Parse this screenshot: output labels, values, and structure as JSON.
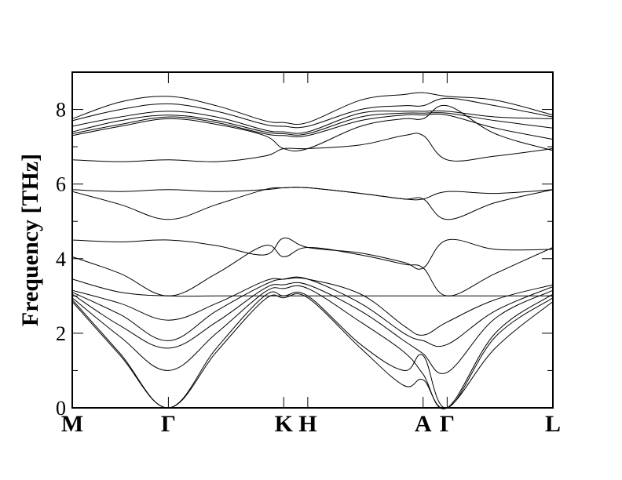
{
  "chart_data": {
    "type": "line",
    "title": "",
    "xlabel": "",
    "ylabel": "Frequency [THz]",
    "ylim": [
      0,
      9
    ],
    "yticks": [
      0,
      2,
      4,
      6,
      8
    ],
    "grid": false,
    "legend": "none",
    "line_color": "#000000",
    "high_symmetry_points": [
      {
        "label": "M",
        "x": 0.0
      },
      {
        "label": "Γ",
        "x": 1.0
      },
      {
        "label": "K",
        "x": 2.2
      },
      {
        "label": "H",
        "x": 2.45
      },
      {
        "label": "A",
        "x": 3.65
      },
      {
        "label": "Γ",
        "x": 3.9
      },
      {
        "label": "L",
        "x": 5.0
      }
    ],
    "xlim": [
      0,
      5.0
    ],
    "series": [
      {
        "values": [
          [
            0,
            2.85
          ],
          [
            0.5,
            1.4
          ],
          [
            1.0,
            0.0
          ],
          [
            1.5,
            1.5
          ],
          [
            2.0,
            2.9
          ],
          [
            2.2,
            2.95
          ],
          [
            2.45,
            2.95
          ],
          [
            3.0,
            1.6
          ],
          [
            3.45,
            0.6
          ],
          [
            3.65,
            0.75
          ],
          [
            3.9,
            0.0
          ],
          [
            4.4,
            1.6
          ],
          [
            5.0,
            2.85
          ]
        ]
      },
      {
        "values": [
          [
            0,
            2.9
          ],
          [
            0.5,
            1.45
          ],
          [
            1.0,
            0.0
          ],
          [
            1.5,
            1.6
          ],
          [
            2.0,
            3.0
          ],
          [
            2.2,
            3.0
          ],
          [
            2.45,
            3.0
          ],
          [
            3.0,
            1.7
          ],
          [
            3.45,
            1.0
          ],
          [
            3.65,
            1.4
          ],
          [
            3.9,
            0.0
          ],
          [
            4.4,
            1.9
          ],
          [
            5.0,
            2.95
          ]
        ]
      },
      {
        "values": [
          [
            0,
            2.95
          ],
          [
            0.5,
            1.9
          ],
          [
            1.0,
            1.0
          ],
          [
            1.5,
            2.0
          ],
          [
            2.0,
            3.1
          ],
          [
            2.2,
            3.2
          ],
          [
            2.45,
            3.2
          ],
          [
            3.0,
            2.3
          ],
          [
            3.45,
            1.5
          ],
          [
            3.65,
            0.9
          ],
          [
            3.9,
            0.0
          ],
          [
            4.4,
            2.0
          ],
          [
            5.0,
            3.05
          ]
        ]
      },
      {
        "values": [
          [
            0,
            3.05
          ],
          [
            0.5,
            2.2
          ],
          [
            1.0,
            1.6
          ],
          [
            1.5,
            2.3
          ],
          [
            2.0,
            3.2
          ],
          [
            2.2,
            3.3
          ],
          [
            2.45,
            3.3
          ],
          [
            3.0,
            2.6
          ],
          [
            3.45,
            1.8
          ],
          [
            3.65,
            1.45
          ],
          [
            3.9,
            0.95
          ],
          [
            4.4,
            2.4
          ],
          [
            5.0,
            3.15
          ]
        ]
      },
      {
        "values": [
          [
            0,
            3.1
          ],
          [
            0.5,
            2.5
          ],
          [
            1.0,
            1.8
          ],
          [
            1.5,
            2.6
          ],
          [
            2.0,
            3.3
          ],
          [
            2.2,
            3.45
          ],
          [
            2.45,
            3.45
          ],
          [
            3.0,
            2.8
          ],
          [
            3.45,
            2.0
          ],
          [
            3.65,
            1.8
          ],
          [
            3.9,
            1.7
          ],
          [
            4.4,
            2.6
          ],
          [
            5.0,
            3.25
          ]
        ]
      },
      {
        "values": [
          [
            0,
            3.15
          ],
          [
            0.5,
            2.8
          ],
          [
            1.0,
            2.35
          ],
          [
            1.5,
            2.8
          ],
          [
            2.0,
            3.4
          ],
          [
            2.2,
            3.45
          ],
          [
            2.45,
            3.45
          ],
          [
            3.0,
            3.05
          ],
          [
            3.45,
            2.2
          ],
          [
            3.65,
            1.95
          ],
          [
            3.9,
            2.3
          ],
          [
            4.4,
            2.9
          ],
          [
            5.0,
            3.3
          ]
        ]
      },
      {
        "values": [
          [
            0,
            3.45
          ],
          [
            0.5,
            3.1
          ],
          [
            1.0,
            3.0
          ],
          [
            1.5,
            3.0
          ],
          [
            2.0,
            3.0
          ],
          [
            2.2,
            3.0
          ],
          [
            2.45,
            3.0
          ],
          [
            3.0,
            3.0
          ],
          [
            3.45,
            3.0
          ],
          [
            3.65,
            3.0
          ],
          [
            3.9,
            3.0
          ],
          [
            4.4,
            3.0
          ],
          [
            5.0,
            3.0
          ]
        ]
      },
      {
        "values": [
          [
            0,
            4.05
          ],
          [
            0.5,
            3.6
          ],
          [
            1.0,
            3.0
          ],
          [
            1.5,
            3.6
          ],
          [
            2.0,
            4.35
          ],
          [
            2.2,
            4.05
          ],
          [
            2.45,
            4.3
          ],
          [
            3.0,
            4.1
          ],
          [
            3.45,
            3.85
          ],
          [
            3.65,
            3.75
          ],
          [
            3.9,
            3.0
          ],
          [
            4.4,
            3.6
          ],
          [
            5.0,
            4.3
          ]
        ]
      },
      {
        "values": [
          [
            0,
            4.5
          ],
          [
            0.5,
            4.45
          ],
          [
            1.0,
            4.5
          ],
          [
            1.5,
            4.35
          ],
          [
            2.0,
            4.1
          ],
          [
            2.2,
            4.55
          ],
          [
            2.45,
            4.3
          ],
          [
            3.0,
            4.15
          ],
          [
            3.45,
            3.9
          ],
          [
            3.65,
            3.75
          ],
          [
            3.9,
            4.5
          ],
          [
            4.4,
            4.25
          ],
          [
            5.0,
            4.25
          ]
        ]
      },
      {
        "values": [
          [
            0,
            5.8
          ],
          [
            0.5,
            5.45
          ],
          [
            1.0,
            5.05
          ],
          [
            1.5,
            5.45
          ],
          [
            2.0,
            5.85
          ],
          [
            2.2,
            5.9
          ],
          [
            2.45,
            5.9
          ],
          [
            3.0,
            5.75
          ],
          [
            3.45,
            5.6
          ],
          [
            3.65,
            5.6
          ],
          [
            3.9,
            5.05
          ],
          [
            4.4,
            5.5
          ],
          [
            5.0,
            5.85
          ]
        ]
      },
      {
        "values": [
          [
            0,
            5.85
          ],
          [
            0.5,
            5.8
          ],
          [
            1.0,
            5.85
          ],
          [
            1.5,
            5.8
          ],
          [
            2.0,
            5.85
          ],
          [
            2.2,
            5.9
          ],
          [
            2.45,
            5.9
          ],
          [
            3.0,
            5.75
          ],
          [
            3.45,
            5.6
          ],
          [
            3.65,
            5.6
          ],
          [
            3.9,
            5.8
          ],
          [
            4.4,
            5.75
          ],
          [
            5.0,
            5.85
          ]
        ]
      },
      {
        "values": [
          [
            0,
            6.65
          ],
          [
            0.5,
            6.6
          ],
          [
            1.0,
            6.65
          ],
          [
            1.5,
            6.6
          ],
          [
            2.0,
            6.75
          ],
          [
            2.2,
            6.95
          ],
          [
            2.45,
            6.95
          ],
          [
            3.0,
            7.05
          ],
          [
            3.45,
            7.3
          ],
          [
            3.65,
            7.3
          ],
          [
            3.9,
            6.65
          ],
          [
            4.4,
            6.75
          ],
          [
            5.0,
            6.95
          ]
        ]
      },
      {
        "values": [
          [
            0,
            7.3
          ],
          [
            0.5,
            7.55
          ],
          [
            1.0,
            7.75
          ],
          [
            1.5,
            7.6
          ],
          [
            2.0,
            7.3
          ],
          [
            2.2,
            6.95
          ],
          [
            2.45,
            6.95
          ],
          [
            3.0,
            7.55
          ],
          [
            3.45,
            7.75
          ],
          [
            3.65,
            7.75
          ],
          [
            3.9,
            8.1
          ],
          [
            4.4,
            7.35
          ],
          [
            5.0,
            6.9
          ]
        ]
      },
      {
        "values": [
          [
            0,
            7.35
          ],
          [
            0.5,
            7.6
          ],
          [
            1.0,
            7.8
          ],
          [
            1.5,
            7.65
          ],
          [
            2.0,
            7.35
          ],
          [
            2.2,
            7.3
          ],
          [
            2.45,
            7.3
          ],
          [
            3.0,
            7.7
          ],
          [
            3.45,
            7.85
          ],
          [
            3.65,
            7.85
          ],
          [
            3.9,
            7.85
          ],
          [
            4.4,
            7.5
          ],
          [
            5.0,
            7.2
          ]
        ]
      },
      {
        "values": [
          [
            0,
            7.4
          ],
          [
            0.5,
            7.7
          ],
          [
            1.0,
            7.85
          ],
          [
            1.5,
            7.7
          ],
          [
            2.0,
            7.4
          ],
          [
            2.2,
            7.35
          ],
          [
            2.45,
            7.35
          ],
          [
            3.0,
            7.8
          ],
          [
            3.45,
            7.9
          ],
          [
            3.65,
            7.9
          ],
          [
            3.9,
            7.9
          ],
          [
            4.4,
            7.7
          ],
          [
            5.0,
            7.5
          ]
        ]
      },
      {
        "values": [
          [
            0,
            7.55
          ],
          [
            0.5,
            7.8
          ],
          [
            1.0,
            7.95
          ],
          [
            1.5,
            7.8
          ],
          [
            2.0,
            7.45
          ],
          [
            2.2,
            7.4
          ],
          [
            2.45,
            7.4
          ],
          [
            3.0,
            7.9
          ],
          [
            3.45,
            7.95
          ],
          [
            3.65,
            7.95
          ],
          [
            3.9,
            7.95
          ],
          [
            4.4,
            7.8
          ],
          [
            5.0,
            7.75
          ]
        ]
      },
      {
        "values": [
          [
            0,
            7.7
          ],
          [
            0.5,
            8.0
          ],
          [
            1.0,
            8.15
          ],
          [
            1.5,
            7.95
          ],
          [
            2.0,
            7.6
          ],
          [
            2.2,
            7.55
          ],
          [
            2.45,
            7.55
          ],
          [
            3.0,
            8.0
          ],
          [
            3.45,
            8.1
          ],
          [
            3.65,
            8.1
          ],
          [
            3.9,
            8.3
          ],
          [
            4.4,
            8.1
          ],
          [
            5.0,
            7.8
          ]
        ]
      },
      {
        "values": [
          [
            0,
            7.75
          ],
          [
            0.5,
            8.2
          ],
          [
            1.0,
            8.35
          ],
          [
            1.5,
            8.1
          ],
          [
            2.0,
            7.7
          ],
          [
            2.2,
            7.65
          ],
          [
            2.45,
            7.65
          ],
          [
            3.0,
            8.25
          ],
          [
            3.45,
            8.4
          ],
          [
            3.65,
            8.45
          ],
          [
            3.9,
            8.35
          ],
          [
            4.4,
            8.25
          ],
          [
            5.0,
            7.85
          ]
        ]
      }
    ]
  }
}
